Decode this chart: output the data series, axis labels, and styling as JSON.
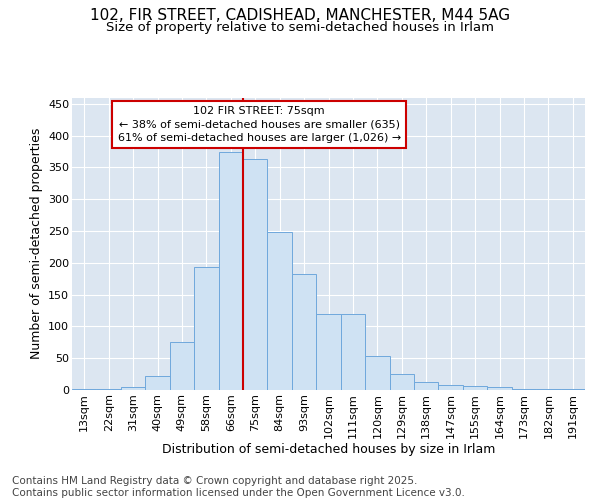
{
  "title_line1": "102, FIR STREET, CADISHEAD, MANCHESTER, M44 5AG",
  "title_line2": "Size of property relative to semi-detached houses in Irlam",
  "xlabel": "Distribution of semi-detached houses by size in Irlam",
  "ylabel": "Number of semi-detached properties",
  "categories": [
    "13sqm",
    "22sqm",
    "31sqm",
    "40sqm",
    "49sqm",
    "58sqm",
    "66sqm",
    "75sqm",
    "84sqm",
    "93sqm",
    "102sqm",
    "111sqm",
    "120sqm",
    "129sqm",
    "138sqm",
    "147sqm",
    "155sqm",
    "164sqm",
    "173sqm",
    "182sqm",
    "191sqm"
  ],
  "values": [
    2,
    2,
    5,
    22,
    75,
    193,
    375,
    363,
    248,
    183,
    120,
    120,
    53,
    25,
    12,
    8,
    7,
    5,
    2,
    2,
    1
  ],
  "bar_color": "#cfe2f3",
  "bar_edge_color": "#6fa8dc",
  "vline_color": "#cc0000",
  "vline_x": 6.5,
  "annotation_line1": "102 FIR STREET: 75sqm",
  "annotation_line2": "← 38% of semi-detached houses are smaller (635)",
  "annotation_line3": "61% of semi-detached houses are larger (1,026) →",
  "annotation_box_facecolor": "#ffffff",
  "annotation_box_edgecolor": "#cc0000",
  "footer_line1": "Contains HM Land Registry data © Crown copyright and database right 2025.",
  "footer_line2": "Contains public sector information licensed under the Open Government Licence v3.0.",
  "ylim": [
    0,
    460
  ],
  "yticks": [
    0,
    50,
    100,
    150,
    200,
    250,
    300,
    350,
    400,
    450
  ],
  "plot_bg_color": "#dce6f1",
  "fig_bg_color": "#ffffff",
  "grid_color": "#ffffff",
  "title_fontsize": 11,
  "subtitle_fontsize": 9.5,
  "axis_label_fontsize": 9,
  "tick_fontsize": 8,
  "annotation_fontsize": 8,
  "footer_fontsize": 7.5
}
